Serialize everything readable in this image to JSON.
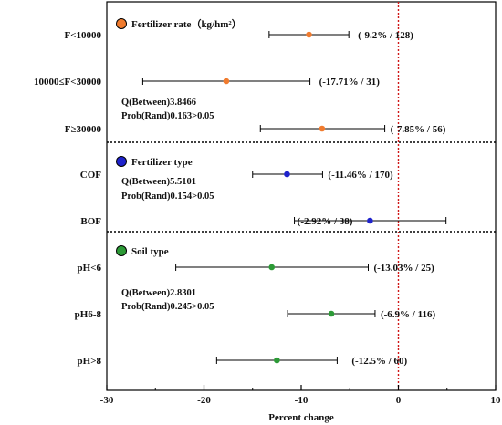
{
  "chart_data": {
    "type": "forest",
    "xlabel": "Percent change",
    "xlim": [
      -30,
      10
    ],
    "xticks": [
      -30,
      -20,
      -10,
      0,
      10
    ],
    "reference_line": 0,
    "groups": [
      {
        "title": "Fertilizer rate（kg/hm²）",
        "color": "#f07b2e",
        "stats": [
          "Q(Between)3.8466",
          "Prob(Rand)0.163>0.05"
        ],
        "rows": [
          {
            "label": "F<10000",
            "mean": -9.2,
            "ci": [
              -13.3,
              -5.1
            ],
            "text": "(-9.2% / 128)"
          },
          {
            "label": "10000≤F<30000",
            "mean": -17.71,
            "ci": [
              -26.3,
              -9.1
            ],
            "text": "(-17.71% / 31)"
          },
          {
            "label": "F≥30000",
            "mean": -7.85,
            "ci": [
              -14.2,
              -1.4
            ],
            "text": "(-7.85% / 56)"
          }
        ]
      },
      {
        "title": "Fertilizer type",
        "color": "#1e22cc",
        "stats": [
          "Q(Between)5.5101",
          "Prob(Rand)0.154>0.05"
        ],
        "rows": [
          {
            "label": "COF",
            "mean": -11.46,
            "ci": [
              -15.0,
              -7.8
            ],
            "text": "(-11.46% / 170)"
          },
          {
            "label": "BOF",
            "mean": -2.92,
            "ci": [
              -10.7,
              4.9
            ],
            "text": "(-2.92% / 38)"
          }
        ]
      },
      {
        "title": "Soil type",
        "color": "#2c9a36",
        "stats": [
          "Q(Between)2.8301",
          "Prob(Rand)0.245>0.05"
        ],
        "rows": [
          {
            "label": "pH<6",
            "mean": -13.03,
            "ci": [
              -22.9,
              -3.1
            ],
            "text": "(-13.03% / 25)"
          },
          {
            "label": "pH6-8",
            "mean": -6.9,
            "ci": [
              -11.4,
              -2.4
            ],
            "text": "(-6.9% / 116)"
          },
          {
            "label": "pH>8",
            "mean": -12.5,
            "ci": [
              -18.7,
              -6.3
            ],
            "text": "(-12.5% / 60)"
          }
        ]
      }
    ]
  }
}
